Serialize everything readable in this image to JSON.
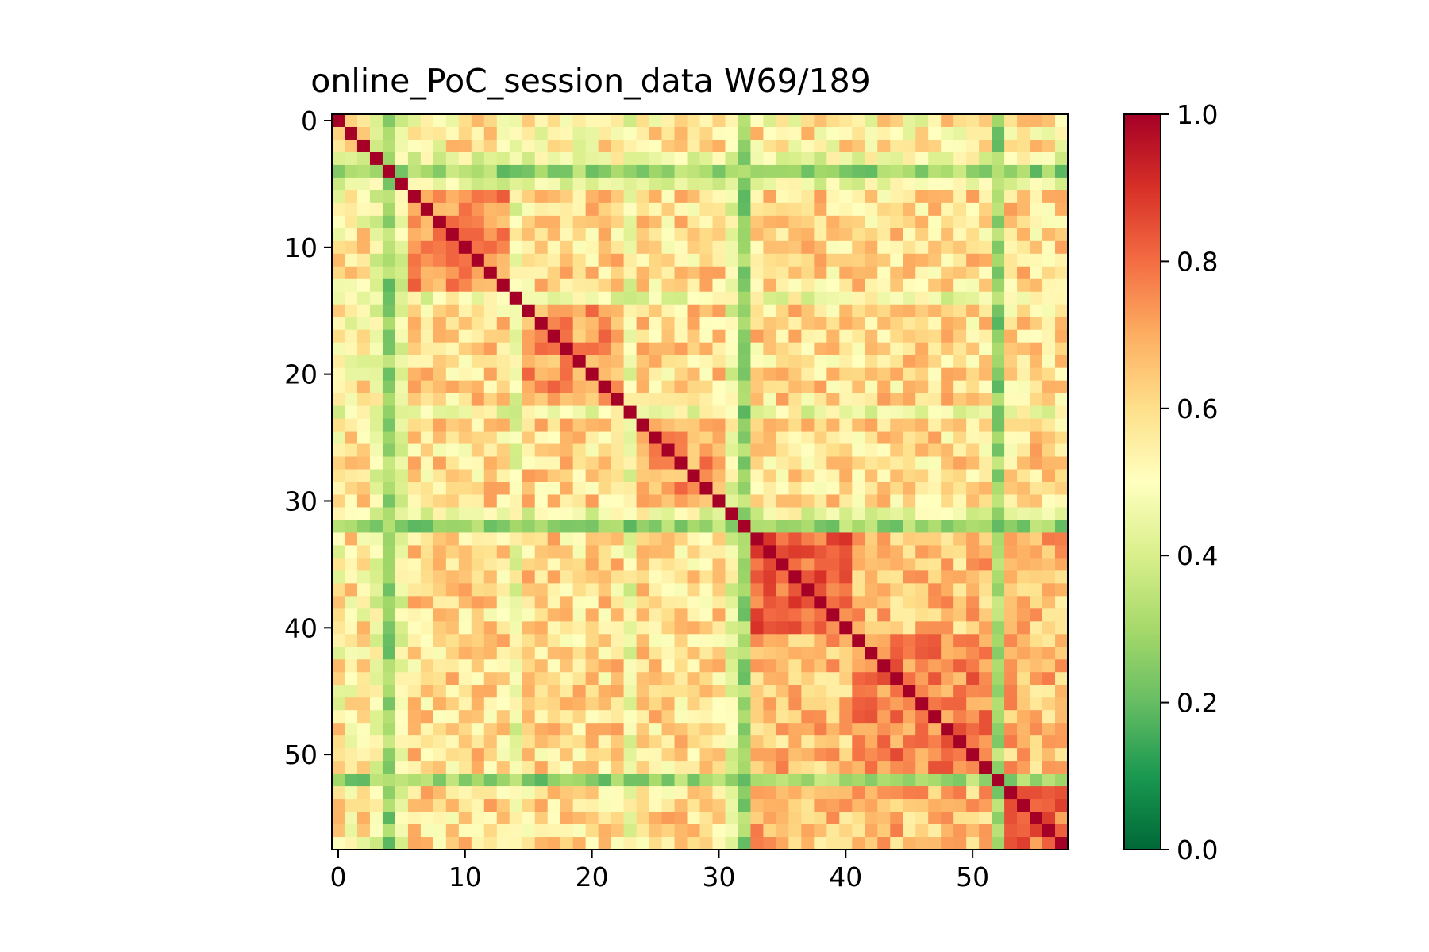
{
  "chart_data": {
    "type": "heatmap",
    "title": "online_PoC_session_data W69/189",
    "xlabel": "",
    "ylabel": "",
    "n": 58,
    "x_ticks": [
      0,
      10,
      20,
      30,
      40,
      50
    ],
    "y_ticks": [
      0,
      10,
      20,
      30,
      40,
      50
    ],
    "colormap": "RdYlGn_r",
    "colorbar": {
      "min": 0.0,
      "max": 1.0,
      "ticks": [
        "0.0",
        "0.2",
        "0.4",
        "0.6",
        "0.8",
        "1.0"
      ]
    },
    "low_similarity_indices": [
      4,
      32,
      52
    ],
    "medium_low_indices": [
      3,
      5,
      14,
      23,
      31
    ],
    "blocks": [
      {
        "start": 6,
        "end": 13,
        "mean": 0.74
      },
      {
        "start": 14,
        "end": 22,
        "mean": 0.72
      },
      {
        "start": 23,
        "end": 31,
        "mean": 0.72
      },
      {
        "start": 33,
        "end": 40,
        "mean": 0.8
      },
      {
        "start": 41,
        "end": 51,
        "mean": 0.76
      },
      {
        "start": 53,
        "end": 57,
        "mean": 0.8
      }
    ],
    "diagonal_value": 1.0
  }
}
